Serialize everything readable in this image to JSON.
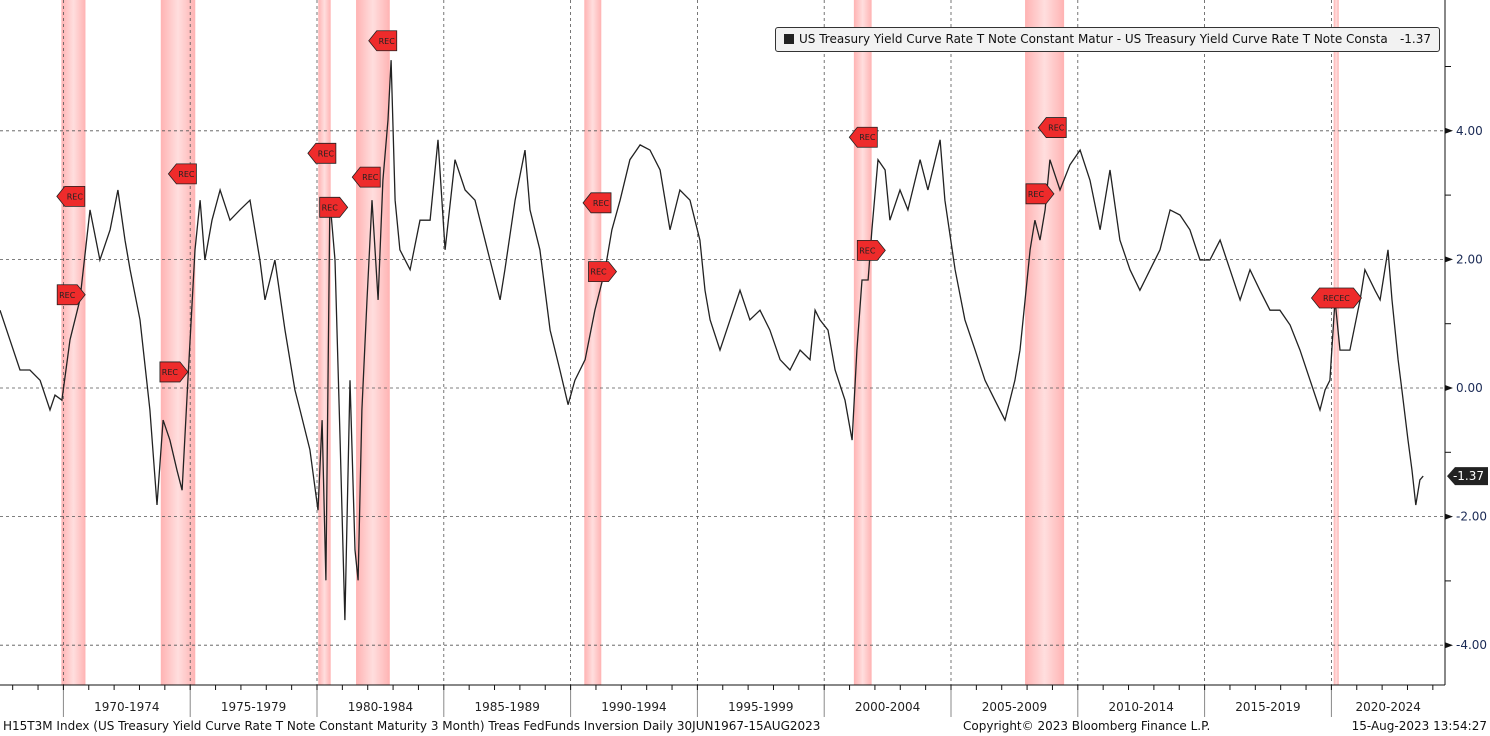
{
  "chart_data": {
    "type": "line",
    "title": "",
    "xlabel": "",
    "ylabel": "",
    "xlim": [
      1967.5,
      2024.5
    ],
    "ylim": [
      -4.6,
      6.0
    ],
    "y_ticks": [
      4,
      2,
      0,
      -2,
      -4
    ],
    "y_tick_labels": [
      "4.00",
      "2.00",
      "0.00",
      "-2.00",
      "-4.00"
    ],
    "y_axis_side": "right",
    "x_period_labels": [
      "1970-1974",
      "1975-1979",
      "1980-1984",
      "1985-1989",
      "1990-1994",
      "1995-1999",
      "2000-2004",
      "2005-2009",
      "2010-2014",
      "2015-2019",
      "2020-2024"
    ],
    "x_period_starts": [
      1970,
      1975,
      1980,
      1985,
      1990,
      1995,
      2000,
      2005,
      2010,
      2015,
      2020,
      2025
    ],
    "grid": true,
    "legend_position": "top-right",
    "series": [
      {
        "name": "US Treasury Yield Curve Rate T Note Constant Matur - US Treasury Yield Curve Rate T Note Consta",
        "last_value": "-1.37",
        "color": "#222222",
        "x": [
          1967.5,
          1967.89,
          1968.29,
          1968.68,
          1969.08,
          1969.47,
          1969.67,
          1969.94,
          1970.26,
          1970.65,
          1971.05,
          1971.44,
          1971.84,
          1972.15,
          1972.43,
          1972.63,
          1973.02,
          1973.41,
          1973.69,
          1973.93,
          1974.2,
          1974.48,
          1974.68,
          1974.91,
          1975.19,
          1975.39,
          1975.58,
          1975.86,
          1976.18,
          1976.57,
          1976.96,
          1977.36,
          1977.75,
          1977.95,
          1978.34,
          1978.74,
          1979.13,
          1979.33,
          1979.72,
          1980.04,
          1980.2,
          1980.35,
          1980.51,
          1980.71,
          1980.91,
          1981.1,
          1981.3,
          1981.5,
          1981.62,
          1981.77,
          1981.97,
          1982.17,
          1982.41,
          1982.6,
          1982.8,
          1982.92,
          1983.08,
          1983.27,
          1983.67,
          1984.06,
          1984.46,
          1984.77,
          1985.05,
          1985.44,
          1985.84,
          1986.23,
          1986.82,
          1987.22,
          1987.41,
          1987.81,
          1988.2,
          1988.4,
          1988.79,
          1989.19,
          1989.58,
          1989.9,
          1990.17,
          1990.57,
          1990.96,
          1991.36,
          1991.63,
          1991.95,
          1992.34,
          1992.74,
          1993.13,
          1993.53,
          1993.92,
          1994.31,
          1994.71,
          1995.1,
          1995.3,
          1995.5,
          1995.89,
          1996.29,
          1996.68,
          1997.07,
          1997.47,
          1997.86,
          1998.26,
          1998.65,
          1999.05,
          1999.44,
          1999.64,
          1999.83,
          2000.15,
          2000.43,
          2000.82,
          2001.1,
          2001.29,
          2001.49,
          2001.73,
          2001.88,
          2002.12,
          2002.4,
          2002.59,
          2002.99,
          2003.3,
          2003.78,
          2004.09,
          2004.57,
          2004.76,
          2005.16,
          2005.55,
          2005.95,
          2006.34,
          2006.73,
          2007.13,
          2007.52,
          2007.72,
          2007.92,
          2008.12,
          2008.31,
          2008.51,
          2008.71,
          2008.9,
          2009.3,
          2009.69,
          2010.09,
          2010.48,
          2010.88,
          2011.27,
          2011.66,
          2012.06,
          2012.45,
          2012.85,
          2013.24,
          2013.64,
          2014.03,
          2014.42,
          2014.82,
          2015.21,
          2015.61,
          2016.0,
          2016.4,
          2016.79,
          2017.18,
          2017.58,
          2017.97,
          2018.37,
          2018.76,
          2019.16,
          2019.55,
          2019.75,
          2019.94,
          2020.14,
          2020.34,
          2020.73,
          2021.13,
          2021.32,
          2021.72,
          2021.92,
          2022.23,
          2022.39,
          2022.63,
          2022.78,
          2023.02,
          2023.18,
          2023.33,
          2023.49,
          2023.62
        ],
        "y": [
          1.21,
          0.75,
          0.28,
          0.28,
          0.12,
          -0.34,
          -0.11,
          -0.19,
          0.75,
          1.37,
          2.77,
          1.99,
          2.46,
          3.08,
          2.3,
          1.84,
          1.06,
          -0.34,
          -1.82,
          -0.5,
          -0.81,
          -1.28,
          -1.59,
          0.12,
          2.15,
          2.92,
          1.99,
          2.61,
          3.08,
          2.61,
          2.77,
          2.92,
          1.99,
          1.37,
          1.99,
          0.9,
          -0.03,
          -0.34,
          -0.96,
          -1.9,
          -0.5,
          -2.99,
          2.92,
          1.99,
          -0.81,
          -3.61,
          0.12,
          -2.52,
          -2.99,
          -0.34,
          1.37,
          2.92,
          1.37,
          3.23,
          4.17,
          5.1,
          2.92,
          2.15,
          1.84,
          2.61,
          2.61,
          3.86,
          2.15,
          3.55,
          3.08,
          2.92,
          1.99,
          1.37,
          1.84,
          2.92,
          3.7,
          2.77,
          2.15,
          0.9,
          0.28,
          -0.26,
          0.12,
          0.44,
          1.21,
          1.84,
          2.46,
          2.92,
          3.55,
          3.78,
          3.7,
          3.39,
          2.46,
          3.08,
          2.92,
          2.3,
          1.52,
          1.06,
          0.59,
          1.06,
          1.52,
          1.06,
          1.21,
          0.9,
          0.44,
          0.28,
          0.59,
          0.44,
          1.21,
          1.06,
          0.9,
          0.28,
          -0.19,
          -0.81,
          0.59,
          1.68,
          1.68,
          2.46,
          3.55,
          3.39,
          2.61,
          3.08,
          2.77,
          3.55,
          3.08,
          3.86,
          2.92,
          1.84,
          1.06,
          0.59,
          0.12,
          -0.19,
          -0.5,
          0.12,
          0.59,
          1.37,
          2.15,
          2.61,
          2.3,
          2.77,
          3.55,
          3.08,
          3.47,
          3.7,
          3.23,
          2.46,
          3.39,
          2.3,
          1.84,
          1.52,
          1.84,
          2.15,
          2.77,
          2.69,
          2.46,
          1.99,
          1.99,
          2.3,
          1.84,
          1.37,
          1.84,
          1.52,
          1.21,
          1.21,
          0.98,
          0.59,
          0.12,
          -0.34,
          -0.03,
          0.12,
          1.37,
          0.59,
          0.59,
          1.37,
          1.84,
          1.52,
          1.37,
          2.15,
          1.37,
          0.44,
          -0.03,
          -0.81,
          -1.28,
          -1.82,
          -1.43,
          -1.37
        ]
      }
    ],
    "recession_bands": [
      [
        1969.92,
        1970.87
      ],
      [
        1973.84,
        1975.2
      ],
      [
        1980.05,
        1980.54
      ],
      [
        1981.54,
        1982.87
      ],
      [
        1990.54,
        1991.21
      ],
      [
        2001.17,
        2001.87
      ],
      [
        2007.92,
        2009.46
      ],
      [
        2020.09,
        2020.29
      ]
    ],
    "recession_color": "#ffb3b3",
    "annotations": [
      {
        "label": "REC",
        "x": 1970.45,
        "y": 2.98,
        "dir": "left"
      },
      {
        "label": "REC",
        "x": 1970.15,
        "y": 1.45,
        "dir": "right"
      },
      {
        "label": "REC",
        "x": 1974.85,
        "y": 3.33,
        "dir": "left"
      },
      {
        "label": "REC",
        "x": 1974.2,
        "y": 0.25,
        "dir": "right"
      },
      {
        "label": "REC",
        "x": 1980.35,
        "y": 3.65,
        "dir": "left"
      },
      {
        "label": "REC",
        "x": 1980.5,
        "y": 2.81,
        "dir": "right"
      },
      {
        "label": "REC",
        "x": 1982.1,
        "y": 3.28,
        "dir": "left"
      },
      {
        "label": "REC",
        "x": 1982.75,
        "y": 5.4,
        "dir": "left"
      },
      {
        "label": "REC",
        "x": 1991.2,
        "y": 2.88,
        "dir": "left"
      },
      {
        "label": "REC",
        "x": 1991.1,
        "y": 1.81,
        "dir": "right"
      },
      {
        "label": "REC",
        "x": 2001.7,
        "y": 3.9,
        "dir": "left"
      },
      {
        "label": "REC",
        "x": 2001.7,
        "y": 2.14,
        "dir": "right"
      },
      {
        "label": "REC",
        "x": 2008.35,
        "y": 3.02,
        "dir": "right"
      },
      {
        "label": "REC",
        "x": 2009.15,
        "y": 4.05,
        "dir": "left"
      },
      {
        "label": "RECEC",
        "x": 2020.2,
        "y": 1.4,
        "dir": "both"
      }
    ]
  },
  "legend": {
    "label": "US Treasury Yield Curve Rate T Note Constant Matur - US Treasury Yield Curve Rate T Note Consta",
    "value": "-1.37"
  },
  "last_value_tag": "-1.37",
  "footer": {
    "description": "H15T3M Index (US Treasury Yield Curve Rate T Note Constant Maturity 3 Month) Treas FedFunds Inversion  Daily 30JUN1967-15AUG2023",
    "copyright": "Copyright© 2023 Bloomberg Finance L.P.",
    "timestamp": "15-Aug-2023 13:54:27"
  }
}
